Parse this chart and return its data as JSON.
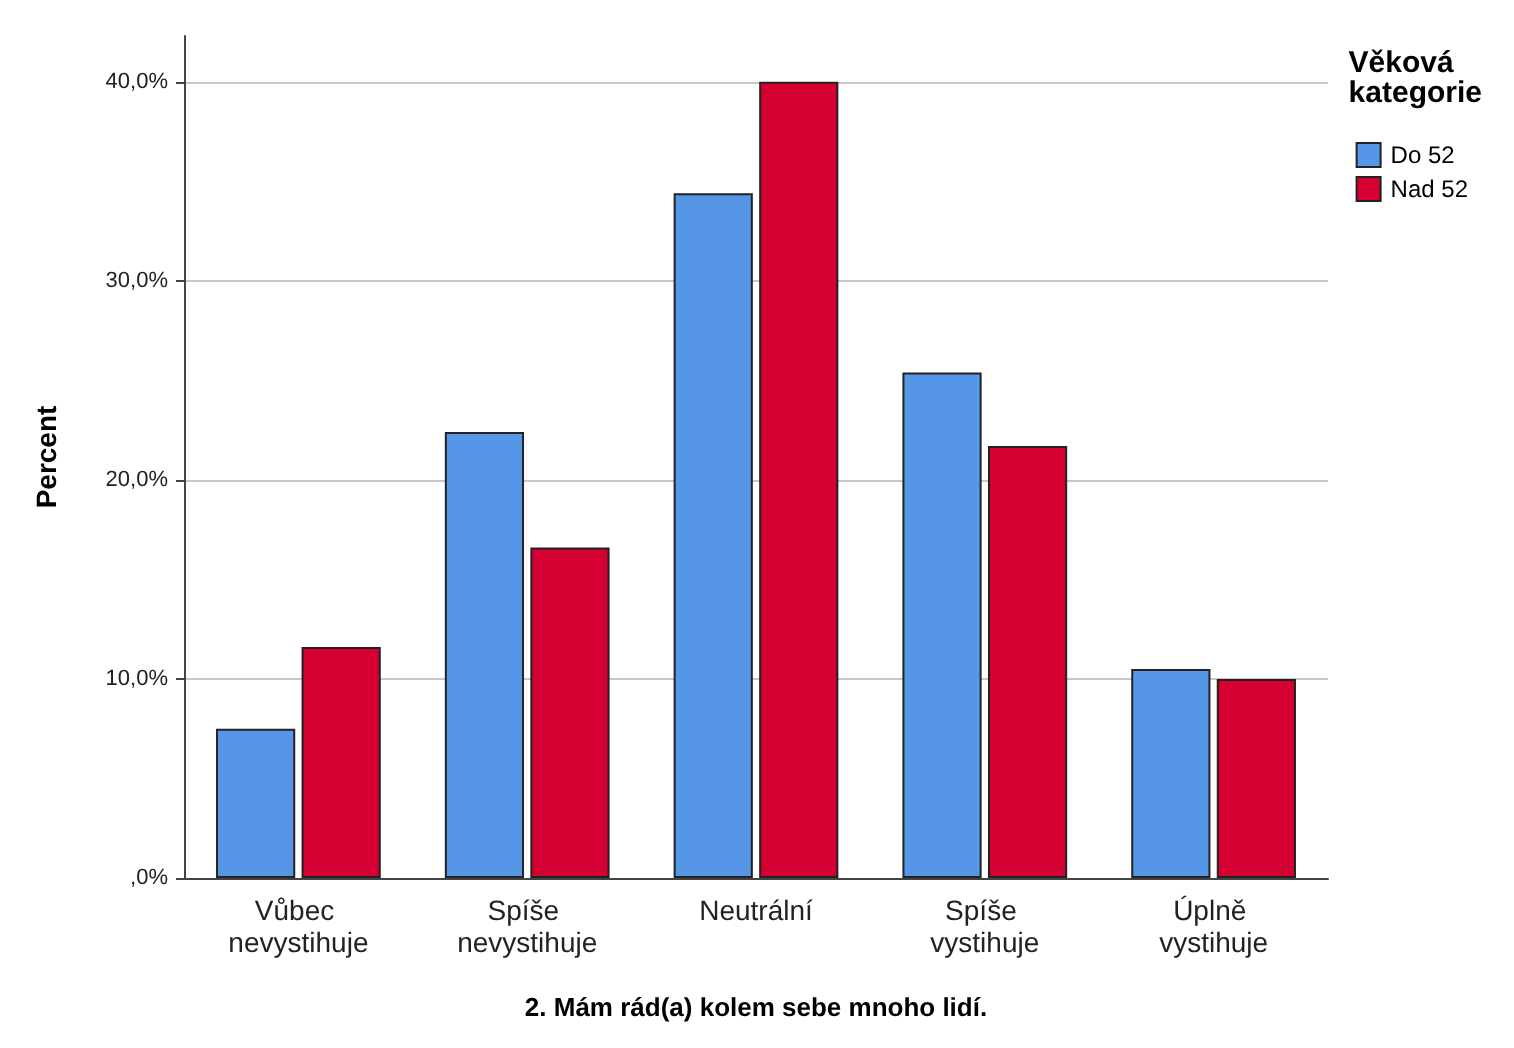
{
  "chart_data": {
    "type": "bar",
    "xlabel": "2. Mám rád(a) kolem sebe mnoho lidí.",
    "ylabel": "Percent",
    "legend_title": "Věková kategorie",
    "categories": [
      "Vůbec nevystihuje",
      "Spíše nevystihuje",
      "Neutrální",
      "Spíše vystihuje",
      "Úplně vystihuje"
    ],
    "series": [
      {
        "name": "Do 52",
        "color": "#5596e6",
        "values": [
          7.5,
          22.4,
          34.4,
          25.4,
          10.5
        ]
      },
      {
        "name": "Nad 52",
        "color": "#d50032",
        "values": [
          11.6,
          16.6,
          40.0,
          21.7,
          10.0
        ]
      }
    ],
    "ylim": [
      0,
      42.3
    ],
    "yticks": [
      {
        "value": 0,
        "label": ",0%"
      },
      {
        "value": 10,
        "label": "10,0%"
      },
      {
        "value": 20,
        "label": "20,0%"
      },
      {
        "value": 30,
        "label": "30,0%"
      },
      {
        "value": 40,
        "label": "40,0%"
      }
    ],
    "grid": "y",
    "legend": "top right"
  }
}
